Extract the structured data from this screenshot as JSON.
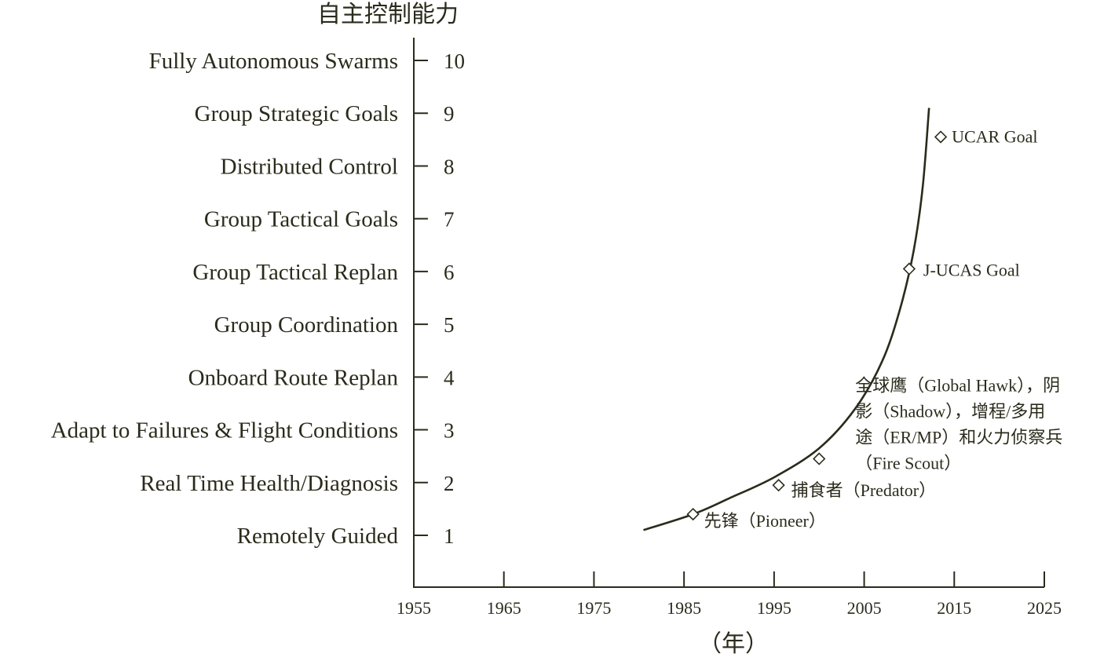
{
  "chart_data": {
    "type": "line",
    "ylabel": "自主控制能力",
    "xlabel": "（年）",
    "xlim": [
      1955,
      2025
    ],
    "ylim": [
      0,
      10
    ],
    "x_ticks": [
      1955,
      1965,
      1975,
      1985,
      1995,
      2005,
      2015,
      2025
    ],
    "y_ticks": [
      {
        "value": 1,
        "label": "Remotely Guided"
      },
      {
        "value": 2,
        "label": "Real Time Health/Diagnosis"
      },
      {
        "value": 3,
        "label": "Adapt to Failures & Flight Conditions"
      },
      {
        "value": 4,
        "label": "Onboard Route Replan"
      },
      {
        "value": 5,
        "label": "Group Coordination"
      },
      {
        "value": 6,
        "label": "Group Tactical Replan"
      },
      {
        "value": 7,
        "label": "Group Tactical Goals"
      },
      {
        "value": 8,
        "label": "Distributed Control"
      },
      {
        "value": 9,
        "label": "Group Strategic Goals"
      },
      {
        "value": 10,
        "label": "Fully Autonomous Swarms"
      }
    ],
    "grid": false,
    "trend_curve": {
      "x": [
        1980.5,
        1986,
        1990,
        1995,
        2000,
        2004,
        2007,
        2009,
        2010.5,
        2011.5,
        2012.2
      ],
      "y": [
        1.1,
        1.4,
        1.7,
        2.1,
        2.65,
        3.4,
        4.3,
        5.3,
        6.4,
        7.6,
        9.1
      ]
    },
    "points": [
      {
        "x": 1986,
        "y": 1.4,
        "label": [
          "先锋（Pioneer）"
        ]
      },
      {
        "x": 1995.5,
        "y": 1.95,
        "label": [
          "捕食者（Predator）"
        ]
      },
      {
        "x": 2000,
        "y": 2.45,
        "label": [
          "全球鹰（Global Hawk），阴",
          "影（Shadow），增程/多用",
          "途（ER/MP）和火力侦察兵",
          "（Fire Scout）"
        ]
      },
      {
        "x": 2010,
        "y": 6.05,
        "label": [
          "J-UCAS Goal"
        ]
      },
      {
        "x": 2013.5,
        "y": 8.55,
        "label": [
          "UCAR Goal"
        ]
      }
    ]
  },
  "colors": {
    "ink": "#2b2b1c",
    "background": "#ffffff"
  }
}
